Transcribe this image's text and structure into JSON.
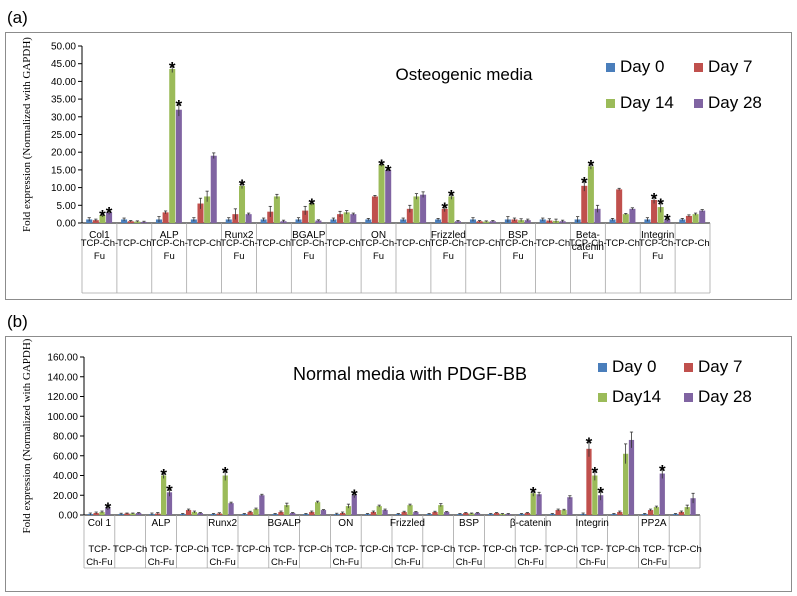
{
  "chart_data": [
    {
      "panel": "(a)",
      "type": "bar",
      "title": "Osteogenic media",
      "ylabel": "Fold expression (Normalized with GAPDH)",
      "ylim": [
        0,
        50
      ],
      "ytick_step": 5,
      "ytick_labels": [
        "0.00",
        "5.00",
        "10.00",
        "15.00",
        "20.00",
        "25.00",
        "30.00",
        "35.00",
        "40.00",
        "45.00",
        "50.00"
      ],
      "legend_position": "top-right",
      "colors": [
        "#4a7ebb",
        "#c0504d",
        "#9bbb59",
        "#8064a2"
      ],
      "series_names": [
        "Day 0",
        "Day 7",
        "Day 14",
        "Day 28"
      ],
      "genes": [
        "Col1",
        "ALP",
        "Runx2",
        "BGALP",
        "ON",
        "Frizzled",
        "BSP",
        "Beta-catenin",
        "Integrin"
      ],
      "group_labels": [
        "TCP-Ch-Fu",
        "TCP-Ch"
      ],
      "groups": [
        {
          "gene": "Col1",
          "group": "TCP-Ch-Fu",
          "values": [
            1.0,
            0.8,
            2.2,
            3.0
          ],
          "errors": [
            0.5,
            0.3,
            0.5,
            0.6
          ],
          "stars": [
            false,
            false,
            true,
            true
          ]
        },
        {
          "gene": "Col1",
          "group": "TCP-Ch",
          "values": [
            1.0,
            0.5,
            0.4,
            0.3
          ],
          "errors": [
            0.4,
            0.2,
            0.2,
            0.2
          ],
          "stars": [
            false,
            false,
            false,
            false
          ]
        },
        {
          "gene": "ALP",
          "group": "TCP-Ch-Fu",
          "values": [
            1.0,
            3.0,
            43.5,
            32.0
          ],
          "errors": [
            0.8,
            0.4,
            1.0,
            1.8
          ],
          "stars": [
            false,
            false,
            true,
            true
          ]
        },
        {
          "gene": "ALP",
          "group": "TCP-Ch",
          "values": [
            1.0,
            5.5,
            7.5,
            19.0
          ],
          "errors": [
            0.5,
            1.5,
            1.5,
            0.8
          ],
          "stars": [
            false,
            false,
            false,
            false
          ]
        },
        {
          "gene": "Runx2",
          "group": "TCP-Ch-Fu",
          "values": [
            1.0,
            2.5,
            10.5,
            2.5
          ],
          "errors": [
            0.5,
            1.5,
            0.8,
            0.3
          ],
          "stars": [
            false,
            false,
            true,
            false
          ]
        },
        {
          "gene": "Runx2",
          "group": "TCP-Ch",
          "values": [
            1.0,
            3.2,
            7.5,
            0.5
          ],
          "errors": [
            0.4,
            1.5,
            0.6,
            0.3
          ],
          "stars": [
            false,
            false,
            false,
            false
          ]
        },
        {
          "gene": "BGALP",
          "group": "TCP-Ch-Fu",
          "values": [
            1.0,
            3.5,
            5.5,
            0.7
          ],
          "errors": [
            0.5,
            1.2,
            0.5,
            0.2
          ],
          "stars": [
            false,
            false,
            true,
            false
          ]
        },
        {
          "gene": "BGALP",
          "group": "TCP-Ch",
          "values": [
            1.0,
            2.5,
            3.0,
            2.5
          ],
          "errors": [
            0.4,
            0.8,
            0.5,
            0.3
          ],
          "stars": [
            false,
            false,
            false,
            false
          ]
        },
        {
          "gene": "ON",
          "group": "TCP-Ch-Fu",
          "values": [
            1.0,
            7.5,
            16.5,
            15.0
          ],
          "errors": [
            0.3,
            0.3,
            0.5,
            0.4
          ],
          "stars": [
            false,
            false,
            true,
            true
          ]
        },
        {
          "gene": "ON",
          "group": "TCP-Ch",
          "values": [
            1.0,
            4.0,
            7.5,
            8.0
          ],
          "errors": [
            0.4,
            1.0,
            0.8,
            0.8
          ],
          "stars": [
            false,
            false,
            false,
            false
          ]
        },
        {
          "gene": "Frizzled",
          "group": "TCP-Ch-Fu",
          "values": [
            1.0,
            4.0,
            7.5,
            0.5
          ],
          "errors": [
            0.3,
            0.8,
            0.8,
            0.2
          ],
          "stars": [
            false,
            true,
            true,
            false
          ]
        },
        {
          "gene": "Frizzled",
          "group": "TCP-Ch",
          "values": [
            1.0,
            0.5,
            0.4,
            0.5
          ],
          "errors": [
            0.5,
            0.2,
            0.2,
            0.2
          ],
          "stars": [
            false,
            false,
            false,
            false
          ]
        },
        {
          "gene": "BSP",
          "group": "TCP-Ch-Fu",
          "values": [
            1.0,
            1.0,
            0.8,
            0.8
          ],
          "errors": [
            0.8,
            0.4,
            0.4,
            0.3
          ],
          "stars": [
            false,
            false,
            false,
            false
          ]
        },
        {
          "gene": "BSP",
          "group": "TCP-Ch",
          "values": [
            1.0,
            0.7,
            0.6,
            0.5
          ],
          "errors": [
            0.4,
            0.5,
            0.5,
            0.3
          ],
          "stars": [
            false,
            false,
            false,
            false
          ]
        },
        {
          "gene": "Beta-catenin",
          "group": "TCP-Ch-Fu",
          "values": [
            1.0,
            10.5,
            16.0,
            4.0
          ],
          "errors": [
            0.8,
            1.5,
            0.8,
            1.0
          ],
          "stars": [
            false,
            true,
            true,
            false
          ]
        },
        {
          "gene": "Beta-catenin",
          "group": "TCP-Ch",
          "values": [
            1.0,
            9.5,
            2.5,
            4.0
          ],
          "errors": [
            0.3,
            0.3,
            0.2,
            0.3
          ],
          "stars": [
            false,
            false,
            false,
            false
          ]
        },
        {
          "gene": "Integrin",
          "group": "TCP-Ch-Fu",
          "values": [
            1.0,
            6.5,
            4.5,
            1.0
          ],
          "errors": [
            0.5,
            1.0,
            1.5,
            0.5
          ],
          "stars": [
            false,
            true,
            true,
            true
          ]
        },
        {
          "gene": "Integrin",
          "group": "TCP-Ch",
          "values": [
            1.0,
            2.0,
            2.5,
            3.5
          ],
          "errors": [
            0.3,
            0.3,
            0.3,
            0.3
          ],
          "stars": [
            false,
            false,
            false,
            false
          ]
        }
      ]
    },
    {
      "panel": "(b)",
      "type": "bar",
      "title": "Normal media with PDGF-BB",
      "ylabel": "Fold expression (Normalized with GAPDH)",
      "ylim": [
        0,
        160
      ],
      "ytick_step": 20,
      "ytick_labels": [
        "0.00",
        "20.00",
        "40.00",
        "60.00",
        "80.00",
        "100.00",
        "120.00",
        "140.00",
        "160.00"
      ],
      "legend_position": "top-right",
      "colors": [
        "#4a7ebb",
        "#c0504d",
        "#9bbb59",
        "#8064a2"
      ],
      "series_names": [
        "Day 0",
        "Day 7",
        "Day14",
        "Day 28"
      ],
      "genes": [
        "Col 1",
        "ALP",
        "Runx2",
        "BGALP",
        "ON",
        "Frizzled",
        "BSP",
        "β-catenin",
        "Integrin",
        "PP2A"
      ],
      "group_labels": [
        "TCP-Ch-Fu",
        "TCP-Ch"
      ],
      "groups": [
        {
          "gene": "Col 1",
          "group": "TCP-Ch-Fu",
          "values": [
            1.0,
            2.0,
            3.0,
            7.0
          ],
          "errors": [
            1.0,
            1.0,
            1.0,
            2.0
          ],
          "stars": [
            false,
            false,
            false,
            true
          ]
        },
        {
          "gene": "Col 1",
          "group": "TCP-Ch",
          "values": [
            1.0,
            1.5,
            1.5,
            2.0
          ],
          "errors": [
            0.8,
            0.5,
            0.5,
            0.5
          ],
          "stars": [
            false,
            false,
            false,
            false
          ]
        },
        {
          "gene": "ALP",
          "group": "TCP-Ch-Fu",
          "values": [
            1.0,
            1.5,
            40.0,
            23.0
          ],
          "errors": [
            1.0,
            1.0,
            3.0,
            4.0
          ],
          "stars": [
            false,
            false,
            true,
            true
          ]
        },
        {
          "gene": "ALP",
          "group": "TCP-Ch",
          "values": [
            1.0,
            5.0,
            3.0,
            2.0
          ],
          "errors": [
            0.5,
            1.0,
            1.0,
            0.5
          ],
          "stars": [
            false,
            false,
            false,
            false
          ]
        },
        {
          "gene": "Runx2",
          "group": "TCP-Ch-Fu",
          "values": [
            1.0,
            1.5,
            40.0,
            12.0
          ],
          "errors": [
            0.5,
            0.8,
            5.0,
            1.0
          ],
          "stars": [
            false,
            false,
            true,
            false
          ]
        },
        {
          "gene": "Runx2",
          "group": "TCP-Ch",
          "values": [
            1.0,
            3.0,
            6.0,
            20.0
          ],
          "errors": [
            0.5,
            0.8,
            1.0,
            1.0
          ],
          "stars": [
            false,
            false,
            false,
            false
          ]
        },
        {
          "gene": "BGALP",
          "group": "TCP-Ch-Fu",
          "values": [
            1.0,
            3.0,
            10.0,
            2.0
          ],
          "errors": [
            0.5,
            1.0,
            2.0,
            0.5
          ],
          "stars": [
            false,
            false,
            false,
            false
          ]
        },
        {
          "gene": "BGALP",
          "group": "TCP-Ch",
          "values": [
            1.0,
            3.0,
            13.0,
            5.0
          ],
          "errors": [
            0.5,
            1.0,
            1.0,
            0.5
          ],
          "stars": [
            false,
            false,
            false,
            false
          ]
        },
        {
          "gene": "ON",
          "group": "TCP-Ch-Fu",
          "values": [
            1.0,
            2.0,
            9.0,
            20.0
          ],
          "errors": [
            0.8,
            1.0,
            2.0,
            2.5
          ],
          "stars": [
            false,
            false,
            false,
            true
          ]
        },
        {
          "gene": "ON",
          "group": "TCP-Ch",
          "values": [
            1.0,
            3.0,
            9.0,
            5.0
          ],
          "errors": [
            0.5,
            1.0,
            1.0,
            1.0
          ],
          "stars": [
            false,
            false,
            false,
            false
          ]
        },
        {
          "gene": "Frizzled",
          "group": "TCP-Ch-Fu",
          "values": [
            1.0,
            3.0,
            10.0,
            3.0
          ],
          "errors": [
            0.5,
            0.8,
            1.0,
            0.5
          ],
          "stars": [
            false,
            false,
            false,
            false
          ]
        },
        {
          "gene": "Frizzled",
          "group": "TCP-Ch",
          "values": [
            1.0,
            3.0,
            10.0,
            3.0
          ],
          "errors": [
            0.5,
            0.8,
            1.5,
            0.5
          ],
          "stars": [
            false,
            false,
            false,
            false
          ]
        },
        {
          "gene": "BSP",
          "group": "TCP-Ch-Fu",
          "values": [
            1.0,
            2.0,
            1.5,
            2.0
          ],
          "errors": [
            0.5,
            0.5,
            0.5,
            0.5
          ],
          "stars": [
            false,
            false,
            false,
            false
          ]
        },
        {
          "gene": "BSP",
          "group": "TCP-Ch",
          "values": [
            1.0,
            2.0,
            1.0,
            1.0
          ],
          "errors": [
            0.5,
            0.5,
            0.5,
            0.5
          ],
          "stars": [
            false,
            false,
            false,
            false
          ]
        },
        {
          "gene": "β-catenin",
          "group": "TCP-Ch-Fu",
          "values": [
            1.0,
            2.0,
            22.0,
            21.0
          ],
          "errors": [
            0.5,
            0.5,
            3.0,
            2.0
          ],
          "stars": [
            false,
            false,
            true,
            false
          ]
        },
        {
          "gene": "β-catenin",
          "group": "TCP-Ch",
          "values": [
            1.0,
            5.0,
            5.0,
            18.0
          ],
          "errors": [
            0.5,
            1.0,
            0.8,
            1.5
          ],
          "stars": [
            false,
            false,
            false,
            false
          ]
        },
        {
          "gene": "Integrin",
          "group": "TCP-Ch-Fu",
          "values": [
            1.0,
            67.0,
            40.0,
            20.0
          ],
          "errors": [
            1.0,
            8.0,
            5.0,
            5.0
          ],
          "stars": [
            false,
            true,
            true,
            true
          ]
        },
        {
          "gene": "Integrin",
          "group": "TCP-Ch",
          "values": [
            1.0,
            3.0,
            62.0,
            76.0
          ],
          "errors": [
            0.5,
            1.0,
            10.0,
            8.0
          ],
          "stars": [
            false,
            false,
            false,
            false
          ]
        },
        {
          "gene": "PP2A",
          "group": "TCP-Ch-Fu",
          "values": [
            1.0,
            5.0,
            8.0,
            42.0
          ],
          "errors": [
            0.5,
            1.0,
            1.0,
            5.0
          ],
          "stars": [
            false,
            false,
            false,
            true
          ]
        },
        {
          "gene": "PP2A",
          "group": "TCP-Ch",
          "values": [
            1.0,
            3.0,
            8.0,
            17.0
          ],
          "errors": [
            0.5,
            1.0,
            2.0,
            5.0
          ],
          "stars": [
            false,
            false,
            false,
            false
          ]
        }
      ]
    }
  ],
  "panels": {
    "a_label": "(a)",
    "b_label": "(b)"
  }
}
